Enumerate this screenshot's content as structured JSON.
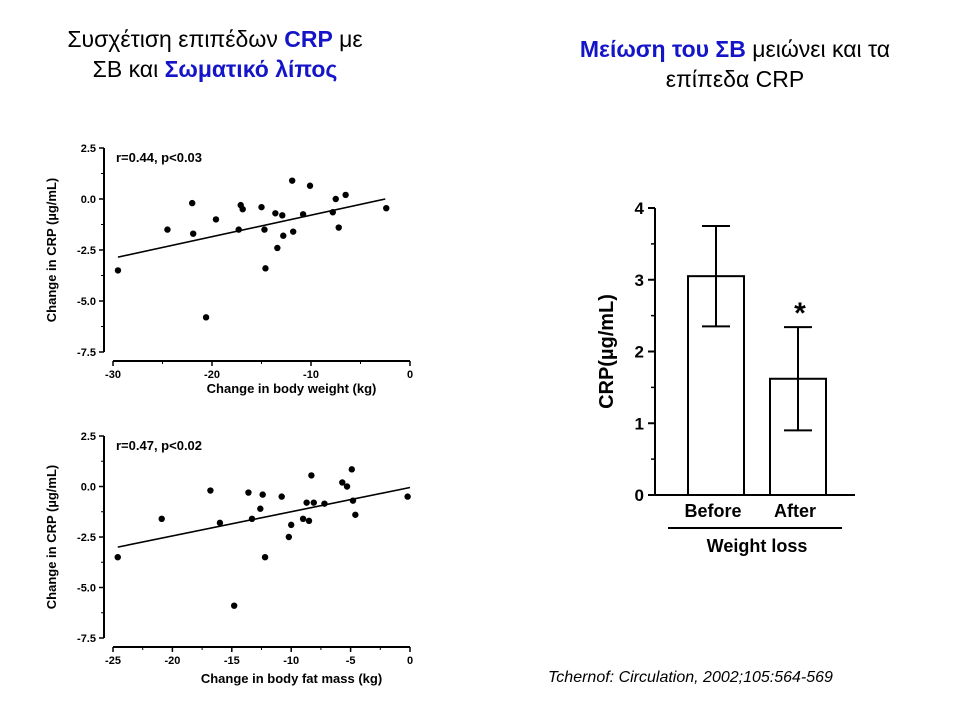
{
  "titles": {
    "left": {
      "line1_a": "Συσχέτιση  επιπέδων ",
      "line1_b": "CRP",
      "line1_c": " με",
      "line2_a": "ΣΒ και ",
      "line2_b": "Σωματικό λίπος"
    },
    "right": {
      "line1_a": "Μείωση του ΣΒ",
      "line1_b": " μειώνει και τα",
      "line2": "επίπεδα CRP"
    }
  },
  "citation": "Tchernof: Circulation, 2002;105:564-569",
  "colors": {
    "accent": "#1414c8",
    "ink": "#000000"
  },
  "chart_data": [
    {
      "type": "scatter",
      "id": "weight",
      "xlabel": "Change in body weight (kg)",
      "ylabel": "Change in CRP (µg/mL)",
      "annotation": "r=0.44, p<0.03",
      "xlim": [
        -30,
        0
      ],
      "ylim": [
        -7.5,
        2.5
      ],
      "xticks": [
        -30,
        -20,
        -10,
        0
      ],
      "xtick_labels": [
        "-30",
        "-20",
        "-10",
        "0"
      ],
      "yticks": [
        2.5,
        0,
        -2.5,
        -5,
        -7.5
      ],
      "ytick_labels": [
        "2.5",
        "0.0",
        "-2.5",
        "-5.0",
        "-7.5"
      ],
      "trend": [
        [
          -29.5,
          -2.85
        ],
        [
          -2.5,
          0.0
        ]
      ],
      "points": [
        [
          -29.5,
          -3.5
        ],
        [
          -24.5,
          -1.5
        ],
        [
          -22,
          -0.2
        ],
        [
          -21.9,
          -1.7
        ],
        [
          -20.6,
          -5.8
        ],
        [
          -19.6,
          -1.0
        ],
        [
          -17.3,
          -1.5
        ],
        [
          -17.1,
          -0.3
        ],
        [
          -16.9,
          -0.5
        ],
        [
          -15,
          -0.4
        ],
        [
          -14.7,
          -1.5
        ],
        [
          -14.6,
          -3.4
        ],
        [
          -13.6,
          -0.7
        ],
        [
          -13.4,
          -2.4
        ],
        [
          -12.9,
          -0.8
        ],
        [
          -12.8,
          -1.8
        ],
        [
          -11.9,
          0.9
        ],
        [
          -11.8,
          -1.6
        ],
        [
          -10.8,
          -0.75
        ],
        [
          -10.1,
          0.65
        ],
        [
          -7.8,
          -0.65
        ],
        [
          -7.5,
          0.0
        ],
        [
          -7.2,
          -1.4
        ],
        [
          -6.5,
          0.2
        ],
        [
          -2.4,
          -0.45
        ]
      ]
    },
    {
      "type": "scatter",
      "id": "fatmass",
      "xlabel": "Change in body fat mass (kg)",
      "ylabel": "Change in CRP (µg/mL)",
      "annotation": "r=0.47, p<0.02",
      "xlim": [
        -25,
        0
      ],
      "ylim": [
        -7.5,
        2.5
      ],
      "xticks": [
        -25,
        -20,
        -15,
        -10,
        -5,
        0
      ],
      "xtick_labels": [
        "-25",
        "-20",
        "-15",
        "-10",
        "-5",
        "0"
      ],
      "yticks": [
        2.5,
        0,
        -2.5,
        -5,
        -7.5
      ],
      "ytick_labels": [
        "2.5",
        "0.0",
        "-2.5",
        "-5.0",
        "-7.5"
      ],
      "trend": [
        [
          -24.6,
          -3.0
        ],
        [
          0,
          -0.05
        ]
      ],
      "points": [
        [
          -24.6,
          -3.5
        ],
        [
          -20.9,
          -1.6
        ],
        [
          -16.8,
          -0.2
        ],
        [
          -16,
          -1.8
        ],
        [
          -14.8,
          -5.9
        ],
        [
          -13.6,
          -0.3
        ],
        [
          -13.3,
          -1.6
        ],
        [
          -12.6,
          -1.1
        ],
        [
          -12.4,
          -0.4
        ],
        [
          -12.2,
          -3.5
        ],
        [
          -10.8,
          -0.5
        ],
        [
          -10.2,
          -2.5
        ],
        [
          -10,
          -1.9
        ],
        [
          -9,
          -1.6
        ],
        [
          -8.7,
          -0.8
        ],
        [
          -8.5,
          -1.7
        ],
        [
          -8.3,
          0.55
        ],
        [
          -8.1,
          -0.8
        ],
        [
          -7.2,
          -0.85
        ],
        [
          -5.7,
          0.2
        ],
        [
          -5.3,
          0.0
        ],
        [
          -4.8,
          -0.7
        ],
        [
          -4.9,
          0.85
        ],
        [
          -4.6,
          -1.4
        ],
        [
          -0.2,
          -0.5
        ]
      ]
    },
    {
      "type": "bar",
      "id": "crp",
      "ylabel": "CRP(µg/mL)",
      "xlabel": "Weight loss",
      "categories": [
        "Before",
        "After"
      ],
      "values": [
        3.05,
        1.62
      ],
      "errors": [
        0.7,
        0.72
      ],
      "ylim": [
        0,
        4
      ],
      "yticks": [
        0,
        1,
        2,
        3,
        4
      ],
      "ytick_labels": [
        "0",
        "1",
        "2",
        "3",
        "4"
      ],
      "significance": [
        "",
        "*"
      ]
    }
  ]
}
